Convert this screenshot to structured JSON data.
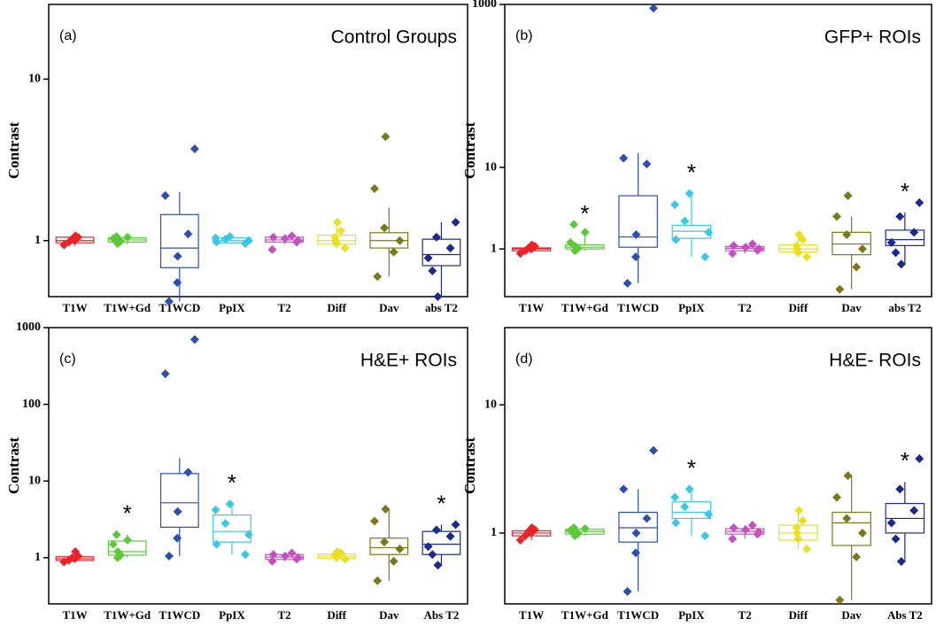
{
  "chart_data": [
    {
      "type": "box",
      "label": "(a)",
      "title": "Control Groups",
      "ylabel": "Contrast",
      "log_scale": true,
      "ylim": [
        0.45,
        29
      ],
      "yticks": [
        1,
        10
      ],
      "categories": [
        "T1W",
        "T1W+Gd",
        "T1WCD",
        "PpIX",
        "T2",
        "Diff",
        "Dav",
        "abs T2"
      ],
      "colors": [
        "#e8232a",
        "#5cc93a",
        "#2c4fb0",
        "#3cc8e0",
        "#c650c0",
        "#e8e020",
        "#7a7a1c",
        "#1c2a8a"
      ],
      "whisker_low": [
        0.93,
        0.95,
        0.42,
        0.95,
        0.95,
        0.9,
        0.6,
        0.45
      ],
      "q1": [
        0.97,
        0.98,
        0.68,
        0.97,
        0.98,
        0.95,
        0.9,
        0.7
      ],
      "median": [
        1.0,
        1.01,
        0.9,
        1.0,
        1.01,
        1.0,
        1.0,
        0.82
      ],
      "q3": [
        1.05,
        1.04,
        1.45,
        1.04,
        1.05,
        1.08,
        1.12,
        1.02
      ],
      "whisker_high": [
        1.08,
        1.07,
        2.0,
        1.07,
        1.08,
        1.3,
        1.6,
        1.3
      ],
      "points": [
        [
          0.94,
          0.98,
          1.0,
          1.02,
          1.05,
          1.07
        ],
        [
          0.96,
          0.99,
          1.01,
          1.03,
          1.05,
          1.06
        ],
        [
          0.42,
          0.55,
          0.8,
          1.1,
          1.9,
          3.7
        ],
        [
          0.96,
          0.98,
          1.0,
          1.02,
          1.04,
          1.06
        ],
        [
          0.88,
          0.98,
          1.0,
          1.03,
          1.05,
          1.07
        ],
        [
          0.9,
          0.96,
          1.0,
          1.05,
          1.15,
          1.3
        ],
        [
          0.6,
          0.85,
          1.0,
          1.2,
          2.1,
          4.4
        ],
        [
          0.45,
          0.65,
          0.78,
          0.9,
          1.05,
          1.3
        ]
      ]
    },
    {
      "type": "box",
      "label": "(b)",
      "title": "GFP+ ROIs",
      "ylabel": "Contrast",
      "log_scale": true,
      "ylim": [
        0.26,
        1000
      ],
      "yticks": [
        1,
        10,
        1000
      ],
      "categories": [
        "T1W",
        "T1W+Gd",
        "T1WCD",
        "PpIX",
        "T2",
        "Diff",
        "Dav",
        "abs T2"
      ],
      "colors": [
        "#e8232a",
        "#5cc93a",
        "#2c4fb0",
        "#3cc8e0",
        "#c650c0",
        "#e8e020",
        "#7a7a1c",
        "#1c2a8a"
      ],
      "whisker_low": [
        0.88,
        0.95,
        0.38,
        0.8,
        0.88,
        0.8,
        0.32,
        0.65
      ],
      "q1": [
        0.95,
        1.0,
        1.05,
        1.35,
        0.95,
        0.92,
        0.85,
        1.1
      ],
      "median": [
        1.0,
        1.05,
        1.4,
        1.65,
        1.02,
        1.0,
        1.15,
        1.3
      ],
      "q3": [
        1.03,
        1.12,
        4.5,
        1.95,
        1.07,
        1.12,
        1.6,
        1.7
      ],
      "whisker_high": [
        1.12,
        1.5,
        15,
        4.8,
        1.15,
        1.5,
        2.5,
        2.8
      ],
      "points": [
        [
          0.88,
          0.95,
          1.0,
          1.03,
          1.08,
          1.12
        ],
        [
          0.95,
          1.02,
          1.08,
          1.2,
          1.6,
          2.0
        ],
        [
          0.38,
          0.8,
          1.5,
          11,
          13,
          900
        ],
        [
          0.8,
          1.3,
          1.6,
          2.2,
          3.5,
          4.8
        ],
        [
          0.88,
          0.96,
          1.0,
          1.05,
          1.1,
          1.15
        ],
        [
          0.8,
          0.9,
          1.0,
          1.1,
          1.3,
          1.5
        ],
        [
          0.32,
          0.6,
          1.0,
          1.5,
          2.5,
          4.5
        ],
        [
          0.65,
          0.9,
          1.2,
          1.6,
          2.5,
          3.7
        ]
      ],
      "flags": [
        {
          "category": 1,
          "text": "*"
        },
        {
          "category": 3,
          "text": "*"
        },
        {
          "category": 7,
          "text": "*"
        }
      ]
    },
    {
      "type": "box",
      "label": "(c)",
      "title": "H&E+ ROIs",
      "ylabel": "Contrast",
      "log_scale": true,
      "ylim": [
        0.25,
        1000
      ],
      "yticks": [
        1,
        10,
        100,
        1000
      ],
      "categories": [
        "T1W",
        "T1W+Gd",
        "T1WCD",
        "PpIX",
        "T2",
        "Diff",
        "Dav",
        "Abs T2"
      ],
      "colors": [
        "#e8232a",
        "#5cc93a",
        "#2c4fb0",
        "#3cc8e0",
        "#c650c0",
        "#e8e020",
        "#7a7a1c",
        "#1c2a8a"
      ],
      "whisker_low": [
        0.88,
        1.0,
        1.05,
        1.1,
        0.9,
        0.95,
        0.5,
        0.8
      ],
      "q1": [
        0.92,
        1.08,
        2.5,
        1.6,
        0.95,
        0.98,
        1.1,
        1.1
      ],
      "median": [
        0.97,
        1.2,
        5.2,
        2.2,
        1.02,
        1.05,
        1.35,
        1.5
      ],
      "q3": [
        1.03,
        1.65,
        12.5,
        3.6,
        1.1,
        1.12,
        1.8,
        2.2
      ],
      "whisker_high": [
        1.2,
        2.0,
        20,
        5.0,
        1.15,
        1.2,
        4.3,
        2.7
      ],
      "points": [
        [
          0.88,
          0.93,
          0.97,
          1.0,
          1.05,
          1.2
        ],
        [
          1.0,
          1.08,
          1.2,
          1.5,
          1.7,
          2.0
        ],
        [
          1.05,
          1.8,
          4,
          13,
          250,
          700
        ],
        [
          1.1,
          1.5,
          2.0,
          2.8,
          4.2,
          5.0
        ],
        [
          0.9,
          0.96,
          1.0,
          1.05,
          1.1,
          1.15
        ],
        [
          0.95,
          1.0,
          1.05,
          1.1,
          1.15,
          1.2
        ],
        [
          0.5,
          0.9,
          1.3,
          1.6,
          3.0,
          4.3
        ],
        [
          0.8,
          1.1,
          1.4,
          1.9,
          2.3,
          2.7
        ]
      ],
      "flags": [
        {
          "category": 1,
          "text": "*"
        },
        {
          "category": 3,
          "text": "*"
        },
        {
          "category": 7,
          "text": "*"
        }
      ]
    },
    {
      "type": "box",
      "label": "(d)",
      "title": "H&E- ROIs",
      "ylabel": "Contrast",
      "log_scale": true,
      "ylim": [
        0.28,
        40
      ],
      "yticks": [
        1,
        10
      ],
      "categories": [
        "T1W",
        "T1W+Gd",
        "T1WCD",
        "PpIX",
        "T2",
        "Diff",
        "Dav",
        "Abs T2"
      ],
      "colors": [
        "#e8232a",
        "#5cc93a",
        "#2c4fb0",
        "#3cc8e0",
        "#c650c0",
        "#e8e020",
        "#7a7a1c",
        "#1c2a8a"
      ],
      "whisker_low": [
        0.88,
        0.95,
        0.35,
        0.95,
        0.9,
        0.75,
        0.3,
        0.6
      ],
      "q1": [
        0.95,
        0.98,
        0.85,
        1.3,
        0.98,
        0.88,
        0.8,
        1.0
      ],
      "median": [
        1.0,
        1.03,
        1.1,
        1.45,
        1.03,
        1.0,
        1.2,
        1.3
      ],
      "q3": [
        1.04,
        1.07,
        1.45,
        1.75,
        1.08,
        1.15,
        1.45,
        1.7
      ],
      "whisker_high": [
        1.1,
        1.1,
        2.2,
        2.2,
        1.15,
        1.5,
        2.8,
        2.5
      ],
      "points": [
        [
          0.88,
          0.95,
          1.0,
          1.03,
          1.06,
          1.1
        ],
        [
          0.95,
          0.99,
          1.02,
          1.05,
          1.08,
          1.1
        ],
        [
          0.35,
          0.7,
          1.0,
          1.3,
          2.2,
          4.4
        ],
        [
          0.95,
          1.2,
          1.4,
          1.6,
          1.9,
          2.2
        ],
        [
          0.9,
          0.98,
          1.02,
          1.06,
          1.1,
          1.15
        ],
        [
          0.75,
          0.9,
          1.0,
          1.1,
          1.25,
          1.5
        ],
        [
          0.3,
          0.65,
          1.0,
          1.3,
          1.9,
          2.8
        ],
        [
          0.6,
          0.9,
          1.2,
          1.5,
          2.2,
          3.8
        ]
      ],
      "flags": [
        {
          "category": 3,
          "text": "*"
        },
        {
          "category": 7,
          "text": "*"
        }
      ]
    }
  ]
}
